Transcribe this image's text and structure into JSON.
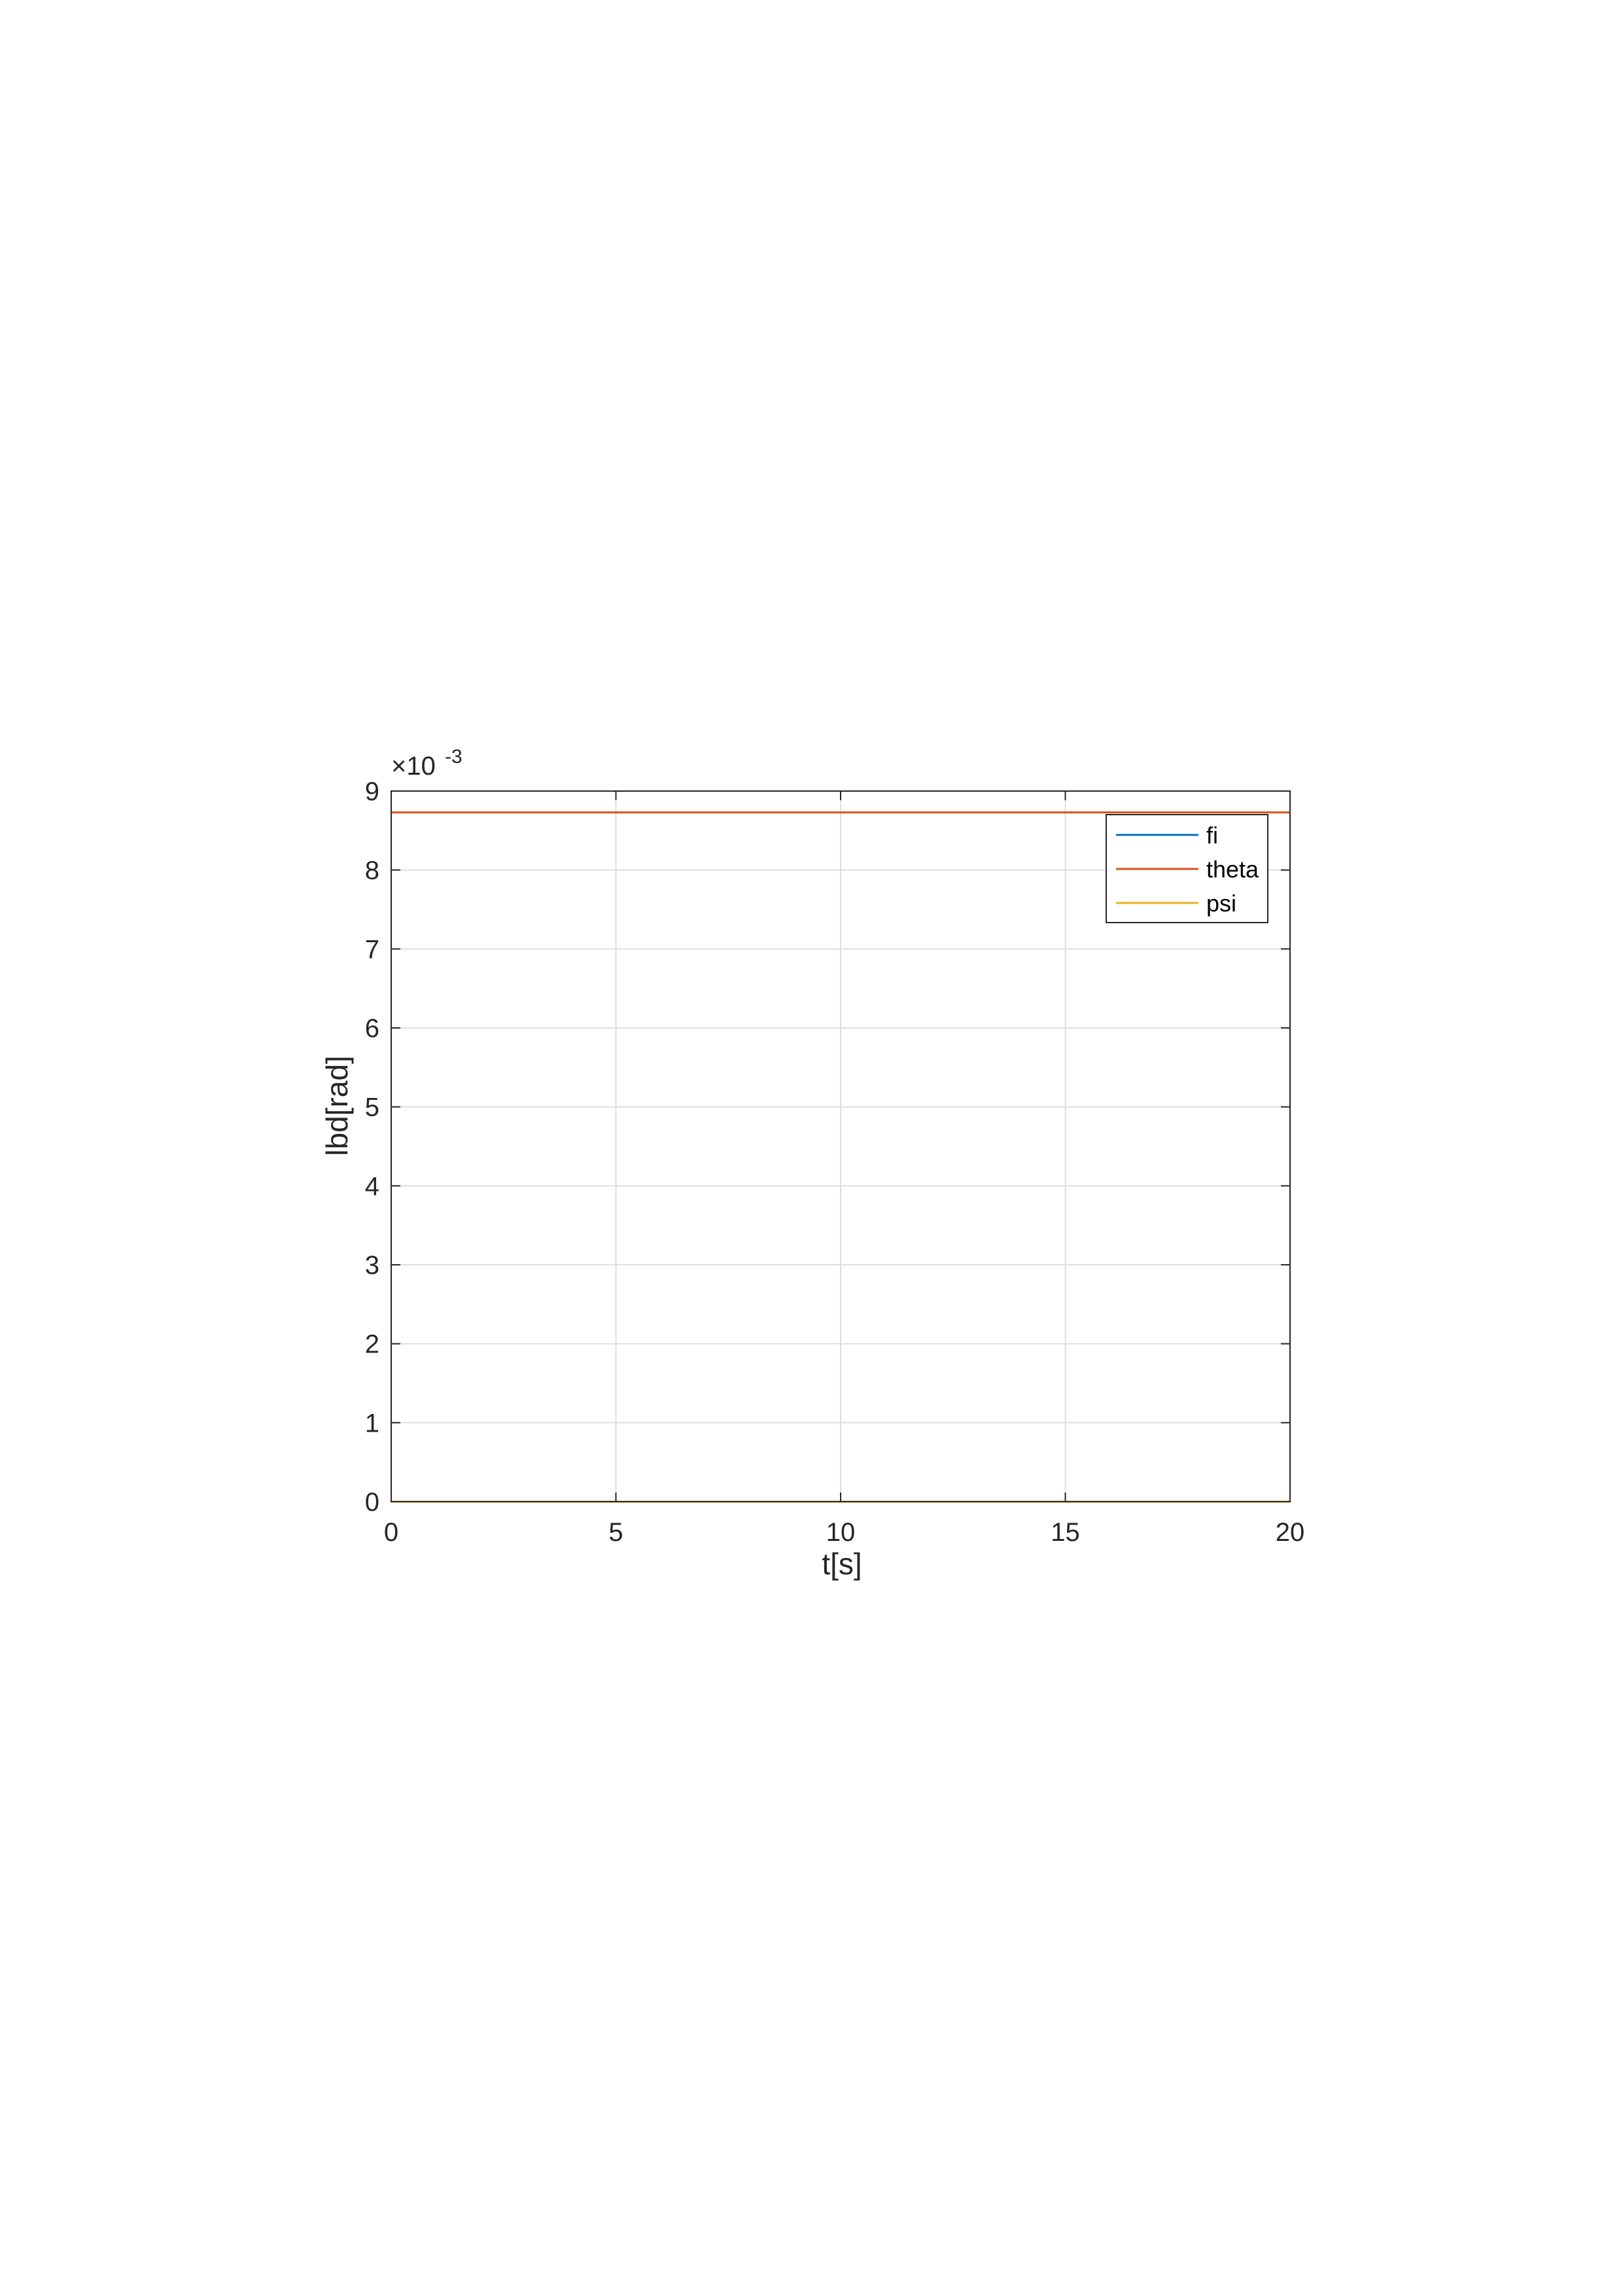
{
  "chart_data": {
    "type": "line",
    "title": "",
    "xlabel": "t[s]",
    "ylabel": "lbd[rad]",
    "x_ticks": [
      "0",
      "5",
      "10",
      "15",
      "20"
    ],
    "y_ticks": [
      "0",
      "1",
      "2",
      "3",
      "4",
      "5",
      "6",
      "7",
      "8",
      "9"
    ],
    "y_exponent_prefix": "×10",
    "y_exponent": "-3",
    "xlim": [
      0,
      20
    ],
    "ylim": [
      0,
      9
    ],
    "y_scale_factor": 0.001,
    "grid": true,
    "legend_position": "top-right",
    "series": [
      {
        "name": "fi",
        "color": "#0072BD",
        "x": [
          0,
          20
        ],
        "y": [
          0,
          0
        ]
      },
      {
        "name": "theta",
        "color": "#D95319",
        "x": [
          0,
          20
        ],
        "y": [
          8.73,
          8.73
        ]
      },
      {
        "name": "psi",
        "color": "#EDB120",
        "x": [
          0,
          20
        ],
        "y": [
          0,
          0
        ]
      }
    ]
  }
}
